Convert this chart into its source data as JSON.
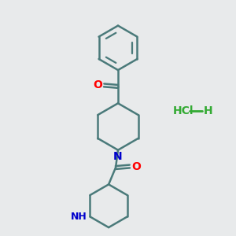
{
  "background_color": "#e8eaeb",
  "bond_color": "#4a7a7a",
  "bond_width": 1.8,
  "oxygen_color": "#ff0000",
  "nitrogen_color": "#0000cc",
  "hcl_color": "#33aa33",
  "fig_size": [
    3.0,
    3.0
  ],
  "dpi": 100,
  "xlim": [
    0,
    10
  ],
  "ylim": [
    0,
    10
  ]
}
